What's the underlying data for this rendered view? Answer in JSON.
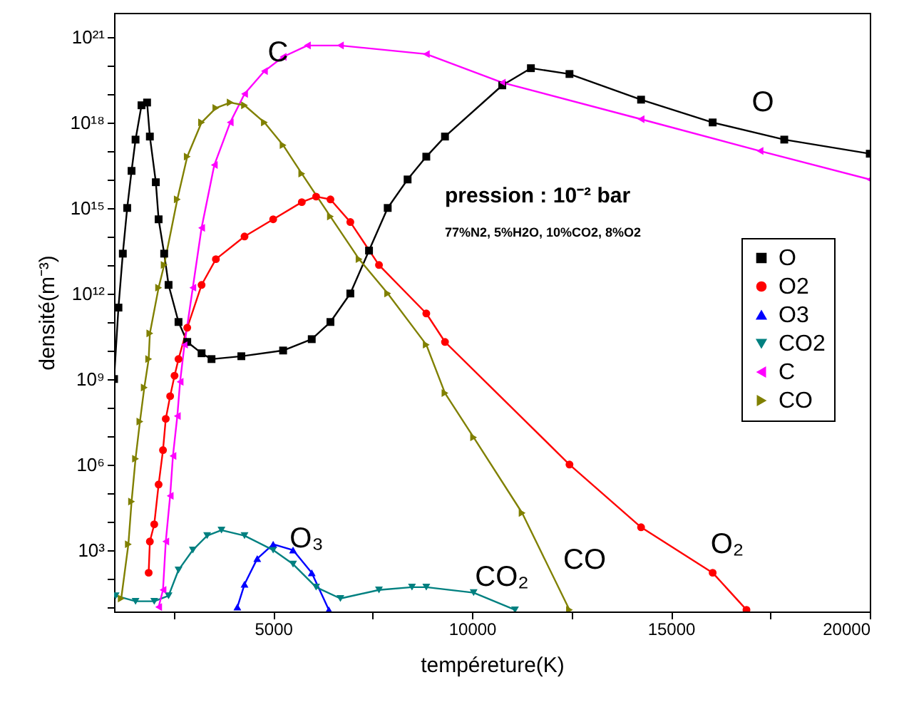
{
  "chart_data": {
    "type": "line",
    "xlabel": "tempéreture(K)",
    "ylabel": "densité(m⁻³)",
    "log": "y",
    "grid": false,
    "legend": "right",
    "xlim": [
      1000,
      20000
    ],
    "xticks": [
      {
        "value": 2500,
        "label": null
      },
      5000,
      {
        "value": 7500,
        "label": null
      },
      10000,
      {
        "value": 12500,
        "label": null
      },
      15000,
      {
        "value": 17500,
        "label": null
      },
      20000
    ],
    "ylim": [
      7,
      7e+21
    ],
    "yticks": [
      {
        "value": 10,
        "label": null
      },
      {
        "value": 100,
        "label": null
      },
      {
        "value": 1000,
        "label": "10³"
      },
      {
        "value": 10000.0,
        "label": null
      },
      {
        "value": 100000.0,
        "label": null
      },
      {
        "value": 1000000.0,
        "label": "10⁶"
      },
      {
        "value": 10000000.0,
        "label": null
      },
      {
        "value": 100000000.0,
        "label": null
      },
      {
        "value": 1000000000.0,
        "label": "10⁹"
      },
      {
        "value": 10000000000.0,
        "label": null
      },
      {
        "value": 100000000000.0,
        "label": null
      },
      {
        "value": 1000000000000.0,
        "label": "10¹²"
      },
      {
        "value": 10000000000000.0,
        "label": null
      },
      {
        "value": 100000000000000.0,
        "label": null
      },
      {
        "value": 1000000000000000.0,
        "label": "10¹⁵"
      },
      {
        "value": 1e+16,
        "label": null
      },
      {
        "value": 1e+17,
        "label": null
      },
      {
        "value": 1e+18,
        "label": "10¹⁸"
      },
      {
        "value": 1e+19,
        "label": null
      },
      {
        "value": 1e+20,
        "label": null
      },
      {
        "value": 1e+21,
        "label": "10²¹"
      }
    ],
    "series": [
      {
        "name": "O",
        "color": "#000000",
        "marker": "square",
        "x": [
          1000,
          1110,
          1220,
          1330,
          1440,
          1540,
          1690,
          1830,
          1900,
          2050,
          2120,
          2260,
          2370,
          2620,
          2840,
          3200,
          3450,
          4200,
          5250,
          5970,
          6440,
          6940,
          7410,
          7880,
          8380,
          8850,
          9320,
          10760,
          11480,
          12450,
          14250,
          16050,
          17850,
          20000
        ],
        "values": [
          1000000000.0,
          320000000000.0,
          25000000000000.0,
          1000000000000000.0,
          2e+16,
          2.5e+17,
          4e+18,
          5e+18,
          3.2e+17,
          8000000000000000.0,
          400000000000000.0,
          25000000000000.0,
          2000000000000.0,
          100000000000.0,
          20000000000.0,
          8000000000.0,
          5000000000.0,
          6300000000.0,
          10000000000.0,
          25000000000.0,
          100000000000.0,
          1000000000000.0,
          32000000000000.0,
          1000000000000000.0,
          1e+16,
          6.3e+16,
          3.2e+17,
          2e+19,
          8e+19,
          5e+19,
          6.3e+18,
          1e+18,
          2.5e+17,
          8e+16
        ]
      },
      {
        "name": "O2",
        "color": "#ff0000",
        "marker": "circle",
        "x": [
          1870,
          1900,
          2010,
          2120,
          2230,
          2300,
          2410,
          2520,
          2620,
          2840,
          3200,
          3560,
          4280,
          5000,
          5720,
          6080,
          6440,
          6940,
          7660,
          8850,
          9320,
          12450,
          14250,
          16050,
          16900
        ],
        "values": [
          160,
          2000,
          8000,
          200000.0,
          3200000.0,
          40000000.0,
          250000000.0,
          1300000000.0,
          5000000000.0,
          63000000000.0,
          2000000000000.0,
          16000000000000.0,
          100000000000000.0,
          400000000000000.0,
          1600000000000000.0,
          2500000000000000.0,
          2000000000000000.0,
          320000000000000.0,
          10000000000000.0,
          200000000000.0,
          20000000000.0,
          1000000.0,
          6300,
          160,
          8
        ]
      },
      {
        "name": "O3",
        "color": "#0000ff",
        "marker": "triangle-up",
        "x": [
          4100,
          4280,
          4600,
          5000,
          5500,
          5970,
          6400
        ],
        "values": [
          10,
          63,
          500,
          1600,
          1000,
          160,
          8
        ]
      },
      {
        "name": "CO2",
        "color": "#008080",
        "marker": "triangle-down",
        "x": [
          1040,
          1540,
          2010,
          2370,
          2620,
          2980,
          3340,
          3700,
          4280,
          5000,
          5500,
          6080,
          6690,
          7660,
          8490,
          8850,
          10040,
          11080
        ],
        "values": [
          25,
          16,
          16,
          25,
          200,
          1000,
          3200,
          5000,
          3200,
          1000,
          320,
          50,
          20,
          40,
          50,
          50,
          32,
          8
        ]
      },
      {
        "name": "C",
        "color": "#ff00ff",
        "marker": "triangle-left",
        "x": [
          2120,
          2230,
          2300,
          2410,
          2480,
          2590,
          2660,
          2770,
          2980,
          3200,
          3520,
          3920,
          4280,
          4780,
          5250,
          5860,
          6690,
          8850,
          10760,
          14250,
          17240,
          20000
        ],
        "values": [
          10,
          40,
          2000,
          80000.0,
          2000000.0,
          50000000.0,
          800000000.0,
          16000000000.0,
          1600000000000.0,
          200000000000000.0,
          3.2e+16,
          1e+18,
          1e+19,
          6.3e+19,
          2e+20,
          5e+20,
          5e+20,
          2.5e+20,
          2.5e+19,
          1.3e+18,
          1e+17,
          1e+16
        ]
      },
      {
        "name": "CO",
        "color": "#808000",
        "marker": "triangle-right",
        "x": [
          1180,
          1360,
          1440,
          1540,
          1650,
          1760,
          1870,
          1900,
          2120,
          2260,
          2590,
          2840,
          3200,
          3560,
          3920,
          4280,
          4780,
          5250,
          5720,
          6440,
          7160,
          7880,
          8850,
          9320,
          10040,
          11260,
          12450
        ],
        "values": [
          20,
          1600,
          50000.0,
          1600000.0,
          32000000.0,
          500000000.0,
          5000000000.0,
          40000000000.0,
          1600000000000.0,
          10000000000000.0,
          2000000000000000.0,
          6.3e+16,
          1e+18,
          3.2e+18,
          5e+18,
          4e+18,
          1e+18,
          1.6e+17,
          1.6e+16,
          500000000000000.0,
          16000000000000.0,
          1000000000000.0,
          16000000000.0,
          320000000.0,
          9000000.0,
          20000.0,
          8
        ]
      }
    ],
    "annotations": [
      "C",
      "O",
      "O₃",
      "CO₂",
      "CO",
      "O₂",
      "pression : 10⁻² bar",
      "77%N2, 5%H2O, 10%CO2, 8%O2"
    ]
  }
}
